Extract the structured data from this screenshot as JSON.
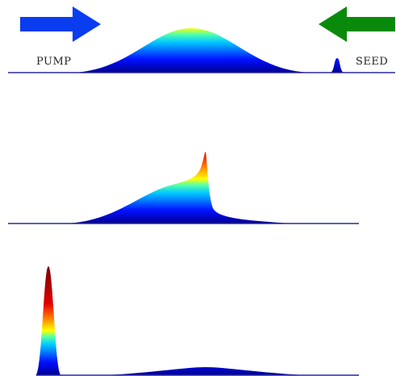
{
  "labels": {
    "pump": "PUMP",
    "seed": "SEED"
  }
}
